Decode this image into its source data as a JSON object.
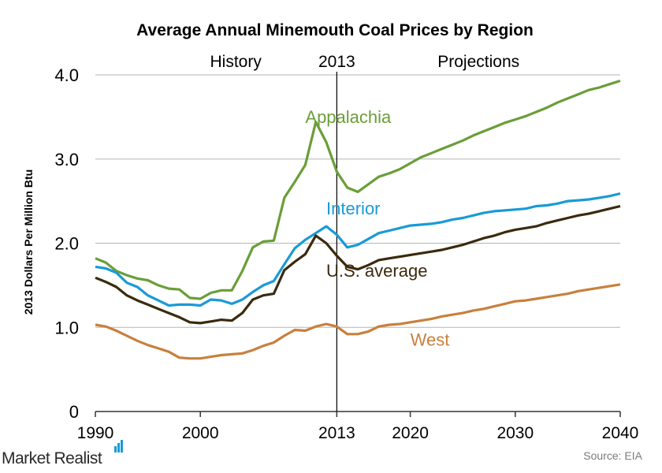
{
  "chart_data": {
    "type": "line",
    "title": "Average Annual Minemouth Coal Prices by Region",
    "ylabel": "2013 Dollars  Per Million Btu",
    "xlabel": "",
    "xlim": [
      1990,
      2040
    ],
    "ylim": [
      0,
      4.0
    ],
    "x_ticks": [
      1990,
      2000,
      2013,
      2020,
      2030,
      2040
    ],
    "y_ticks": [
      {
        "value": 0,
        "label": "0"
      },
      {
        "value": 1.0,
        "label": "1.0"
      },
      {
        "value": 2.0,
        "label": "2.0"
      },
      {
        "value": 3.0,
        "label": "3.0"
      },
      {
        "value": 4.0,
        "label": "4.0"
      }
    ],
    "divider": {
      "x": 2013,
      "label": "2013"
    },
    "period_labels": {
      "history": "History",
      "projections": "Projections"
    },
    "grid": "horizontal",
    "legend": "inline labels",
    "series": [
      {
        "name": "Appalachia",
        "color": "#6a9e38",
        "label_anchor": [
          2010,
          3.43
        ],
        "x": [
          1990,
          1991,
          1992,
          1993,
          1994,
          1995,
          1996,
          1997,
          1998,
          1999,
          2000,
          2001,
          2002,
          2003,
          2004,
          2005,
          2006,
          2007,
          2008,
          2009,
          2010,
          2011,
          2012,
          2013,
          2014,
          2015,
          2016,
          2017,
          2018,
          2019,
          2020,
          2021,
          2022,
          2023,
          2024,
          2025,
          2026,
          2027,
          2028,
          2029,
          2030,
          2031,
          2032,
          2033,
          2034,
          2035,
          2036,
          2037,
          2038,
          2039,
          2040
        ],
        "values": [
          1.82,
          1.77,
          1.67,
          1.62,
          1.58,
          1.56,
          1.5,
          1.46,
          1.45,
          1.35,
          1.34,
          1.41,
          1.44,
          1.44,
          1.67,
          1.95,
          2.02,
          2.03,
          2.54,
          2.73,
          2.93,
          3.44,
          3.2,
          2.85,
          2.66,
          2.61,
          2.7,
          2.79,
          2.83,
          2.88,
          2.95,
          3.02,
          3.07,
          3.12,
          3.17,
          3.22,
          3.28,
          3.33,
          3.38,
          3.43,
          3.47,
          3.51,
          3.56,
          3.61,
          3.67,
          3.72,
          3.77,
          3.82,
          3.85,
          3.89,
          3.93
        ]
      },
      {
        "name": "Interior",
        "color": "#1a9ad6",
        "label_anchor": [
          2012,
          2.34
        ],
        "x": [
          1990,
          1991,
          1992,
          1993,
          1994,
          1995,
          1996,
          1997,
          1998,
          1999,
          2000,
          2001,
          2002,
          2003,
          2004,
          2005,
          2006,
          2007,
          2008,
          2009,
          2010,
          2011,
          2012,
          2013,
          2014,
          2015,
          2016,
          2017,
          2018,
          2019,
          2020,
          2021,
          2022,
          2023,
          2024,
          2025,
          2026,
          2027,
          2028,
          2029,
          2030,
          2031,
          2032,
          2033,
          2034,
          2035,
          2036,
          2037,
          2038,
          2039,
          2040
        ],
        "values": [
          1.72,
          1.7,
          1.65,
          1.53,
          1.48,
          1.38,
          1.32,
          1.26,
          1.27,
          1.27,
          1.26,
          1.33,
          1.32,
          1.28,
          1.33,
          1.42,
          1.5,
          1.55,
          1.75,
          1.94,
          2.04,
          2.12,
          2.2,
          2.1,
          1.95,
          1.98,
          2.05,
          2.12,
          2.15,
          2.18,
          2.21,
          2.22,
          2.23,
          2.25,
          2.28,
          2.3,
          2.33,
          2.36,
          2.38,
          2.39,
          2.4,
          2.41,
          2.44,
          2.45,
          2.47,
          2.5,
          2.51,
          2.52,
          2.54,
          2.56,
          2.59
        ]
      },
      {
        "name": "U.S. average",
        "color": "#3b2a0e",
        "label_anchor": [
          2012,
          1.6
        ],
        "x": [
          1990,
          1991,
          1992,
          1993,
          1994,
          1995,
          1996,
          1997,
          1998,
          1999,
          2000,
          2001,
          2002,
          2003,
          2004,
          2005,
          2006,
          2007,
          2008,
          2009,
          2010,
          2011,
          2012,
          2013,
          2014,
          2015,
          2016,
          2017,
          2018,
          2019,
          2020,
          2021,
          2022,
          2023,
          2024,
          2025,
          2026,
          2027,
          2028,
          2029,
          2030,
          2031,
          2032,
          2033,
          2034,
          2035,
          2036,
          2037,
          2038,
          2039,
          2040
        ],
        "values": [
          1.59,
          1.54,
          1.48,
          1.38,
          1.32,
          1.27,
          1.22,
          1.17,
          1.12,
          1.06,
          1.05,
          1.07,
          1.09,
          1.08,
          1.17,
          1.33,
          1.38,
          1.4,
          1.68,
          1.78,
          1.87,
          2.09,
          2.0,
          1.85,
          1.72,
          1.69,
          1.74,
          1.8,
          1.82,
          1.84,
          1.86,
          1.88,
          1.9,
          1.92,
          1.95,
          1.98,
          2.02,
          2.06,
          2.09,
          2.13,
          2.16,
          2.18,
          2.2,
          2.24,
          2.27,
          2.3,
          2.33,
          2.35,
          2.38,
          2.41,
          2.44
        ]
      },
      {
        "name": "West",
        "color": "#c8803c",
        "label_anchor": [
          2020,
          0.78
        ],
        "x": [
          1990,
          1991,
          1992,
          1993,
          1994,
          1995,
          1996,
          1997,
          1998,
          1999,
          2000,
          2001,
          2002,
          2003,
          2004,
          2005,
          2006,
          2007,
          2008,
          2009,
          2010,
          2011,
          2012,
          2013,
          2014,
          2015,
          2016,
          2017,
          2018,
          2019,
          2020,
          2021,
          2022,
          2023,
          2024,
          2025,
          2026,
          2027,
          2028,
          2029,
          2030,
          2031,
          2032,
          2033,
          2034,
          2035,
          2036,
          2037,
          2038,
          2039,
          2040
        ],
        "values": [
          1.03,
          1.01,
          0.96,
          0.9,
          0.84,
          0.79,
          0.75,
          0.71,
          0.64,
          0.63,
          0.63,
          0.65,
          0.67,
          0.68,
          0.69,
          0.73,
          0.78,
          0.82,
          0.9,
          0.97,
          0.96,
          1.01,
          1.04,
          1.01,
          0.92,
          0.92,
          0.95,
          1.01,
          1.03,
          1.04,
          1.06,
          1.08,
          1.1,
          1.13,
          1.15,
          1.17,
          1.2,
          1.22,
          1.25,
          1.28,
          1.31,
          1.32,
          1.34,
          1.36,
          1.38,
          1.4,
          1.43,
          1.45,
          1.47,
          1.49,
          1.51
        ]
      }
    ]
  },
  "footer": {
    "source": "Source: EIA",
    "brand": "Market Realist"
  }
}
